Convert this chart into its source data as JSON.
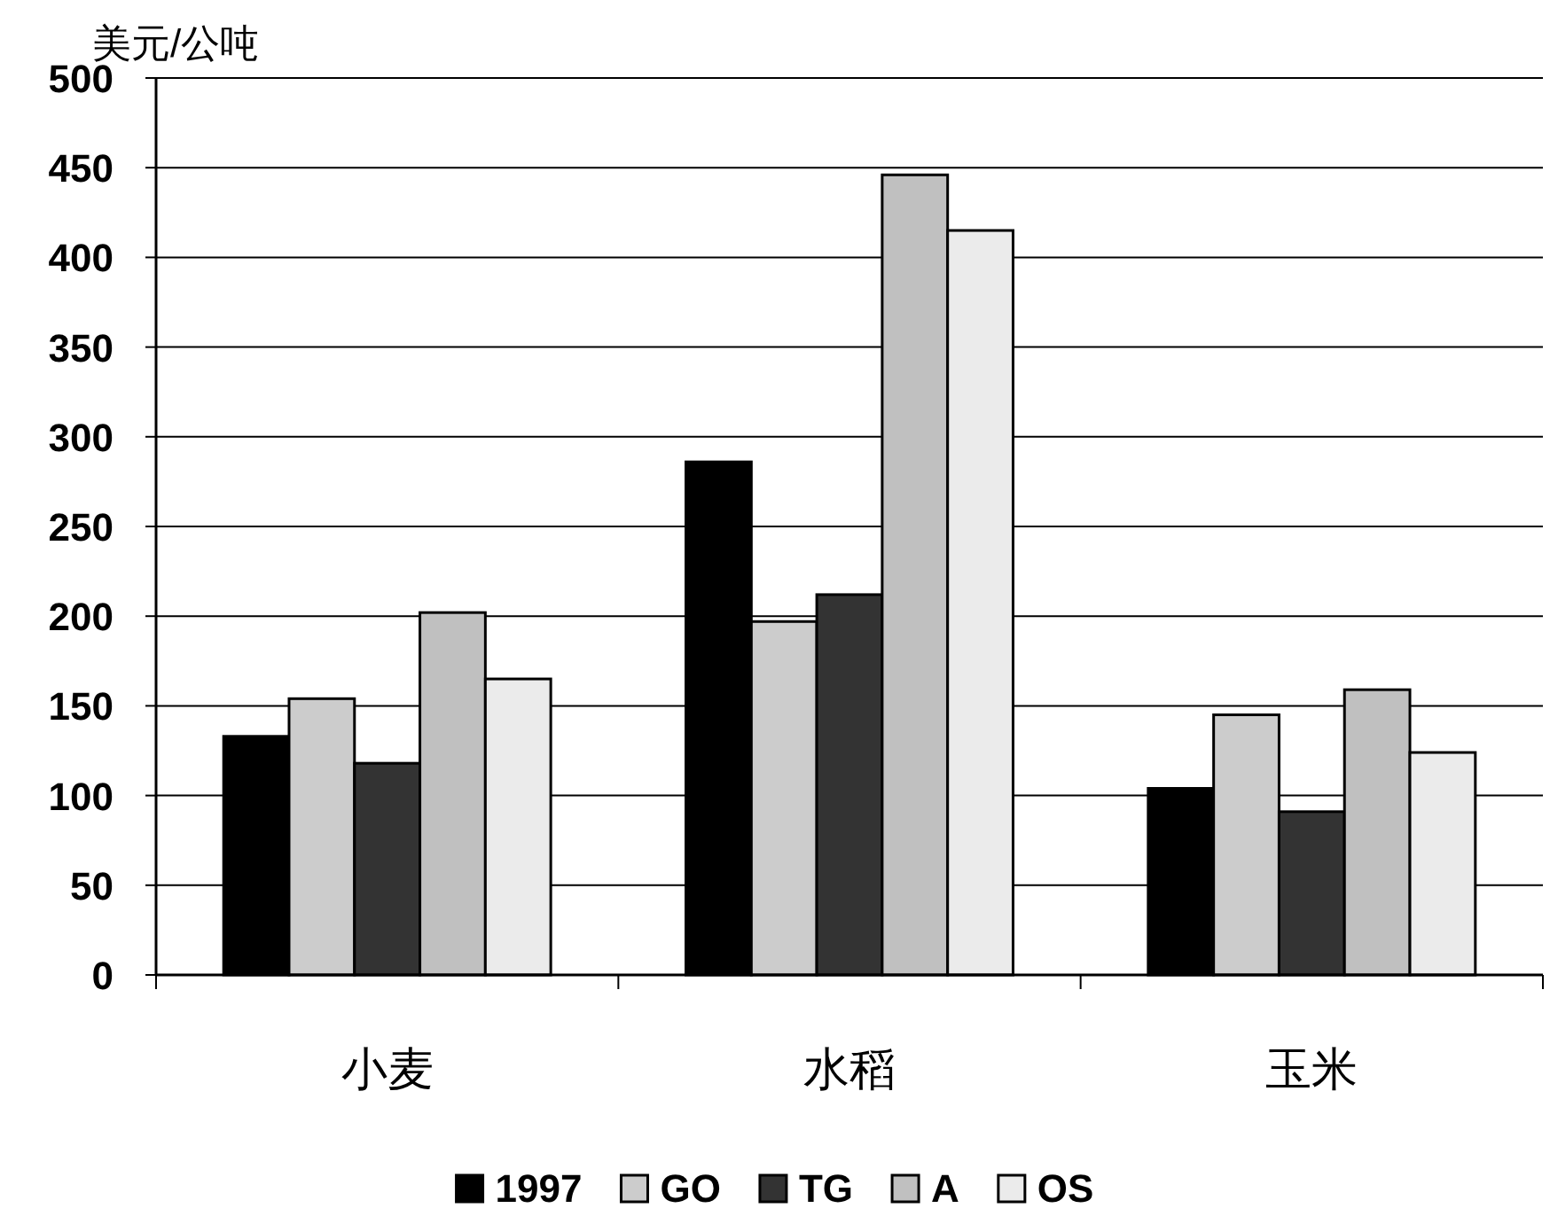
{
  "chart_data": {
    "type": "bar",
    "ylabel": "美元/公吨",
    "categories": [
      "小麦",
      "水稻",
      "玉米"
    ],
    "series": [
      {
        "name": "1997",
        "color": "#000000",
        "values": [
          133,
          286,
          104
        ]
      },
      {
        "name": "GO",
        "color": "#cccccc",
        "values": [
          154,
          197,
          145
        ]
      },
      {
        "name": "TG",
        "color": "#333333",
        "values": [
          118,
          212,
          91
        ]
      },
      {
        "name": "A",
        "color": "#c0c0c0",
        "values": [
          202,
          446,
          159
        ]
      },
      {
        "name": "OS",
        "color": "#ebebeb",
        "values": [
          165,
          415,
          124
        ]
      }
    ],
    "ylim": [
      0,
      500
    ],
    "yticks": [
      0,
      50,
      100,
      150,
      200,
      250,
      300,
      350,
      400,
      450,
      500
    ],
    "grid": "y",
    "legend": "bottom"
  }
}
